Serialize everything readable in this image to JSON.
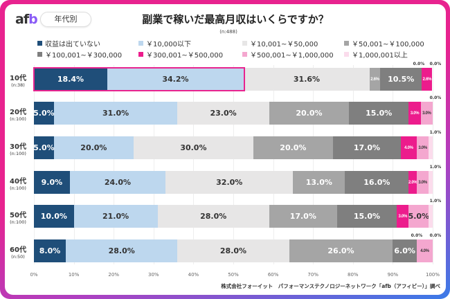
{
  "header": {
    "logo": "afb",
    "tag": "年代別",
    "title": "副業で稼いだ最高月収はいくらですか？",
    "n": "(n:488)"
  },
  "source": "株式会社フォーイット　パフォーマンステクノロジーネットワーク「afb（アフィビー）」調べ",
  "chart_data": {
    "type": "bar",
    "orientation": "horizontal-stacked-100",
    "title": "副業で稼いだ最高月収はいくらですか？",
    "subtitle": "(n:488)",
    "categories": [
      "10代",
      "20代",
      "30代",
      "40代",
      "50代",
      "60代"
    ],
    "category_n": [
      "(n:38)",
      "(n:100)",
      "(n:100)",
      "(n:100)",
      "(n:100)",
      "(n:50)"
    ],
    "xlim": [
      0,
      100
    ],
    "xticks": [
      "0%",
      "10%",
      "20%",
      "30%",
      "40%",
      "50%",
      "60%",
      "70%",
      "80%",
      "90%",
      "100%"
    ],
    "grid": true,
    "legend_position": "top",
    "highlight": {
      "category": "10代",
      "series": [
        "収益は出ていない",
        "￥10,000以下"
      ]
    },
    "series": [
      {
        "name": "収益は出ていない",
        "color": "#1f4e79",
        "label_color": "#ffffff",
        "values": [
          18.4,
          5.0,
          5.0,
          9.0,
          10.0,
          8.0
        ]
      },
      {
        "name": "￥10,000以下",
        "color": "#bdd7ee",
        "label_color": "#333333",
        "values": [
          34.2,
          31.0,
          20.0,
          24.0,
          21.0,
          28.0
        ]
      },
      {
        "name": "￥10,001~￥50,000",
        "color": "#e7e6e6",
        "label_color": "#333333",
        "values": [
          31.6,
          23.0,
          30.0,
          32.0,
          28.0,
          28.0
        ]
      },
      {
        "name": "￥50,001~￥100,000",
        "color": "#a5a5a5",
        "label_color": "#ffffff",
        "values": [
          2.6,
          20.0,
          20.0,
          13.0,
          17.0,
          26.0
        ]
      },
      {
        "name": "￥100,001~￥300,000",
        "color": "#7f7f7f",
        "label_color": "#ffffff",
        "values": [
          10.5,
          15.0,
          17.0,
          16.0,
          15.0,
          6.0
        ]
      },
      {
        "name": "￥300,001~￥500,000",
        "color": "#ec1c8c",
        "label_color": "#ffffff",
        "values": [
          2.6,
          3.0,
          4.0,
          2.0,
          3.0,
          0.0
        ]
      },
      {
        "name": "￥500,001~￥1,000,000",
        "color": "#f4a7cf",
        "label_color": "#333333",
        "values": [
          0.0,
          3.0,
          3.0,
          3.0,
          5.0,
          4.0
        ]
      },
      {
        "name": "￥1,000,001以上",
        "color": "#fbdcec",
        "label_color": "#333333",
        "values": [
          0.0,
          0.0,
          1.0,
          1.0,
          1.0,
          0.0
        ]
      }
    ]
  }
}
